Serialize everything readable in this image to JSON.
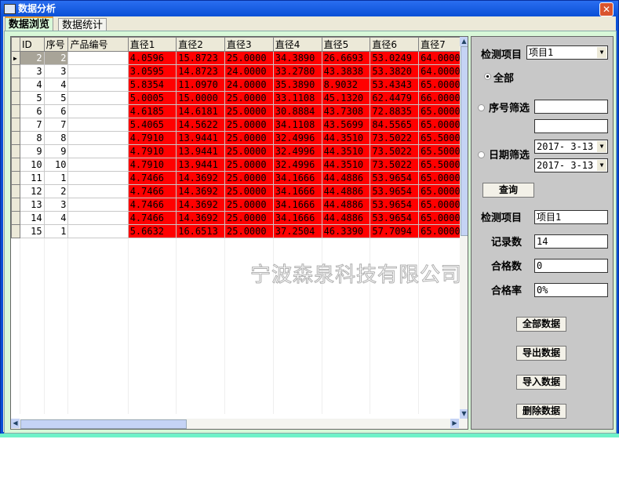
{
  "window": {
    "title": "数据分析",
    "close": "✕"
  },
  "tabs": [
    {
      "label": "数据浏览",
      "active": true
    },
    {
      "label": "数据统计",
      "active": false
    }
  ],
  "grid": {
    "columns": [
      "ID",
      "序号",
      "产品编号",
      "直径1",
      "直径2",
      "直径3",
      "直径4",
      "直径5",
      "直径6",
      "直径7"
    ],
    "rows": [
      [
        "2",
        "2",
        "",
        "4.0596",
        "15.8723",
        "25.0000",
        "34.3890",
        "26.6693",
        "53.0249",
        "64.0000"
      ],
      [
        "3",
        "3",
        "",
        "3.0595",
        "14.8723",
        "24.0000",
        "33.2780",
        "43.3838",
        "53.3820",
        "64.0000"
      ],
      [
        "4",
        "4",
        "",
        "5.8354",
        "11.0970",
        "24.0000",
        "35.3890",
        "8.9032",
        "53.4343",
        "65.0000"
      ],
      [
        "5",
        "5",
        "",
        "5.0005",
        "15.0000",
        "25.0000",
        "33.1108",
        "45.1320",
        "62.4479",
        "66.0000"
      ],
      [
        "6",
        "6",
        "",
        "4.6185",
        "14.6181",
        "25.0000",
        "30.8884",
        "43.7308",
        "72.8835",
        "65.0000"
      ],
      [
        "7",
        "7",
        "",
        "5.4065",
        "14.5622",
        "25.0000",
        "34.1108",
        "43.5699",
        "84.5565",
        "65.0000"
      ],
      [
        "8",
        "8",
        "",
        "4.7910",
        "13.9441",
        "25.0000",
        "32.4996",
        "44.3510",
        "73.5022",
        "65.5000"
      ],
      [
        "9",
        "9",
        "",
        "4.7910",
        "13.9441",
        "25.0000",
        "32.4996",
        "44.3510",
        "73.5022",
        "65.5000"
      ],
      [
        "10",
        "10",
        "",
        "4.7910",
        "13.9441",
        "25.0000",
        "32.4996",
        "44.3510",
        "73.5022",
        "65.5000"
      ],
      [
        "11",
        "1",
        "",
        "4.7466",
        "14.3692",
        "25.0000",
        "34.1666",
        "44.4886",
        "53.9654",
        "65.0000"
      ],
      [
        "12",
        "2",
        "",
        "4.7466",
        "14.3692",
        "25.0000",
        "34.1666",
        "44.4886",
        "53.9654",
        "65.0000"
      ],
      [
        "13",
        "3",
        "",
        "4.7466",
        "14.3692",
        "25.0000",
        "34.1666",
        "44.4886",
        "53.9654",
        "65.0000"
      ],
      [
        "14",
        "4",
        "",
        "4.7466",
        "14.3692",
        "25.0000",
        "34.1666",
        "44.4886",
        "53.9654",
        "65.0000"
      ],
      [
        "15",
        "1",
        "",
        "5.6632",
        "16.6513",
        "25.0000",
        "37.2504",
        "46.3390",
        "57.7094",
        "65.0000"
      ]
    ],
    "selected_row": 0,
    "highlight_color": "#ff0000"
  },
  "watermark": "宁波森泉科技有限公司",
  "panel": {
    "item_label": "检测项目",
    "item_value": "项目1",
    "radio_all": "全部",
    "radio_seq": "序号筛选",
    "radio_date": "日期筛选",
    "seq_from": "",
    "seq_to": "",
    "date_from": "2017- 3-13",
    "date_to": "2017- 3-13",
    "query": "查询",
    "res_item_label": "检测项目",
    "res_item_value": "项目1",
    "count_label": "记录数",
    "count_value": "14",
    "pass_label": "合格数",
    "pass_value": "0",
    "rate_label": "合格率",
    "rate_value": "0%",
    "btn_all": "全部数据",
    "btn_export": "导出数据",
    "btn_import": "导入数据",
    "btn_delete": "删除数据"
  }
}
